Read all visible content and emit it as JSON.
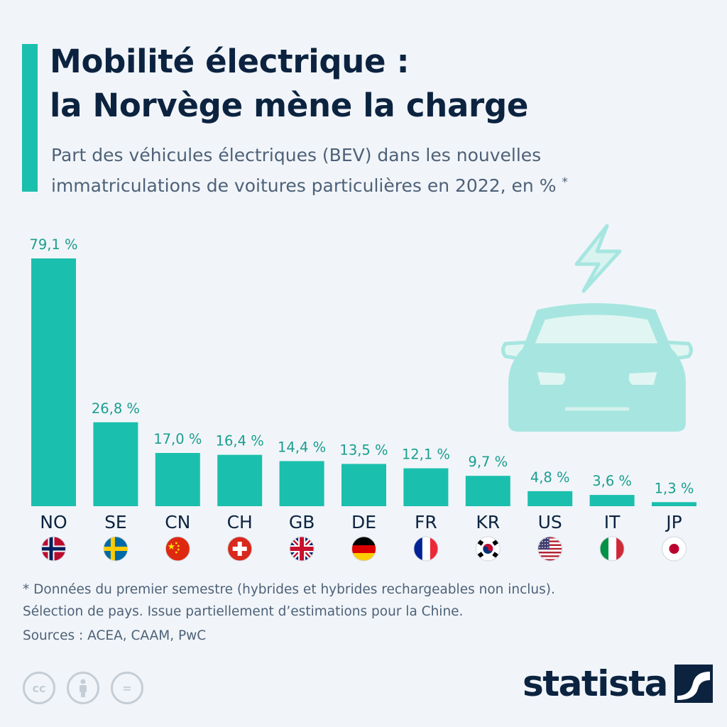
{
  "header": {
    "title_line1": "Mobilité électrique :",
    "title_line2": "la Norvège mène la charge",
    "subtitle_line1": "Part des véhicules électriques (BEV) dans les nouvelles",
    "subtitle_line2": "immatriculations de voitures particulières en 2022, en %",
    "subtitle_mark": "*"
  },
  "chart_data": {
    "type": "bar",
    "title": "Mobilité électrique : la Norvège mène la charge",
    "ylabel": "%",
    "ylim": [
      0,
      79.1
    ],
    "categories": [
      "NO",
      "SE",
      "CN",
      "CH",
      "GB",
      "DE",
      "FR",
      "KR",
      "US",
      "IT",
      "JP"
    ],
    "values": [
      79.1,
      26.8,
      17.0,
      16.4,
      14.4,
      13.5,
      12.1,
      9.7,
      4.8,
      3.6,
      1.3
    ],
    "data_labels": [
      "79,1 %",
      "26,8 %",
      "17,0 %",
      "16,4 %",
      "14,4 %",
      "13,5 %",
      "12,1 %",
      "9,7 %",
      "4,8 %",
      "3,6 %",
      "1,3 %"
    ],
    "flags": [
      "flag-norway-icon",
      "flag-sweden-icon",
      "flag-china-icon",
      "flag-switzerland-icon",
      "flag-uk-icon",
      "flag-germany-icon",
      "flag-france-icon",
      "flag-south-korea-icon",
      "flag-usa-icon",
      "flag-italy-icon",
      "flag-japan-icon"
    ],
    "bar_color": "#1bbfad",
    "label_color": "#1a9e8f"
  },
  "illustration": {
    "icon": "electric-car-icon",
    "color": "#a7e6e0"
  },
  "footer": {
    "note_line1": "* Données du premier semestre (hybrides et hybrides rechargeables non inclus).",
    "note_line2": "Sélection de pays. Issue partiellement d’estimations pour la Chine.",
    "sources": "Sources : ACEA, CAAM, PwC",
    "license_icons": [
      "cc-icon",
      "attribution-icon",
      "no-derivatives-icon"
    ],
    "license_cc_text": "cc",
    "license_nd_text": "=",
    "logo_text": "statista"
  }
}
